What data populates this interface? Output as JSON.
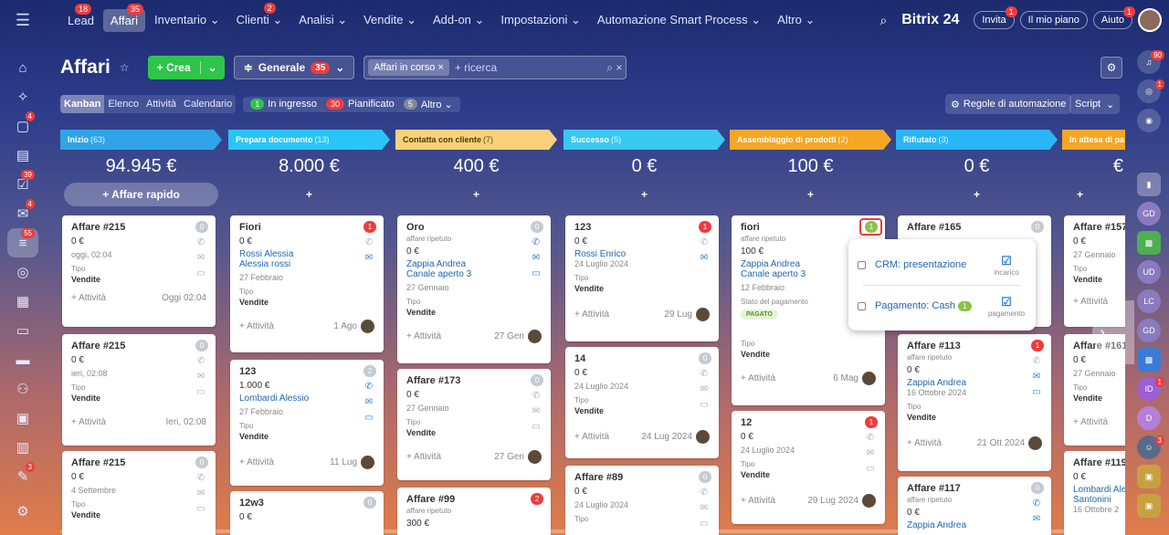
{
  "nav": {
    "items": [
      {
        "label": "Lead",
        "badge": "18"
      },
      {
        "label": "Affari",
        "badge": "35"
      },
      {
        "label": "Inventario ⌄",
        "badge": ""
      },
      {
        "label": "Clienti ⌄",
        "badge": "2"
      },
      {
        "label": "Analisi ⌄",
        "badge": ""
      },
      {
        "label": "Vendite ⌄",
        "badge": ""
      },
      {
        "label": "Add-on ⌄",
        "badge": ""
      },
      {
        "label": "Impostazioni ⌄",
        "badge": ""
      },
      {
        "label": "Automazione Smart Process ⌄",
        "badge": ""
      },
      {
        "label": "Altro ⌄",
        "badge": ""
      }
    ],
    "logo": "Bitrix 24",
    "invite": "Invita",
    "invite_badge": "1",
    "plan": "Il mio piano",
    "help": "Aiuto",
    "help_badge": "1"
  },
  "page": {
    "title": "Affari",
    "create": "+ Crea",
    "filter": "Generale",
    "filter_count": "35",
    "search_tag": "Affari in corso ×",
    "search_placeholder": "+ ricerca"
  },
  "views": {
    "tabs": [
      "Kanban",
      "Elenco",
      "Attività",
      "Calendario"
    ],
    "counters": [
      {
        "n": "1",
        "label": "In ingresso",
        "color": "#2fc44a"
      },
      {
        "n": "30",
        "label": "Pianificato",
        "color": "#ef3b3b"
      },
      {
        "n": "5",
        "label": "Altro ⌄",
        "color": "#7e8a9a"
      }
    ],
    "automation": "Regole di automazione",
    "script": "Script"
  },
  "left_badges": {
    "feed": "4",
    "tasks": "39",
    "mail": "4",
    "crm": "55",
    "sites": "3"
  },
  "right_badges": {
    "bell": "90",
    "second": "1",
    "id": "1",
    "av": "3"
  },
  "columns": [
    {
      "name": "Inizio",
      "count": "(63)",
      "total": "94.945 €",
      "add": "+ Affare rapido",
      "color": "#2fa4e7"
    },
    {
      "name": "Prepara documento",
      "count": "(13)",
      "total": "8.000 €",
      "add": "+",
      "color": "#29c5f6"
    },
    {
      "name": "Contatta con cliente",
      "count": "(7)",
      "total": "400 €",
      "add": "+",
      "color": "#f9d17a"
    },
    {
      "name": "Successo",
      "count": "(5)",
      "total": "0 €",
      "add": "+",
      "color": "#39c8f0"
    },
    {
      "name": "Assemblaggio di prodotti",
      "count": "(2)",
      "total": "100 €",
      "add": "+",
      "color": "#f5a623"
    },
    {
      "name": "Rifiutato",
      "count": "(3)",
      "total": "0 €",
      "add": "+",
      "color": "#29b6f6"
    },
    {
      "name": "In attesa di pa",
      "count": "",
      "total": "€",
      "add": "+",
      "color": "#f5a623"
    }
  ],
  "cards": {
    "c1a": {
      "title": "Affare #215",
      "amt": "0 €",
      "date": "oggi, 02:04",
      "lbl": "Tipo",
      "val": "Vendite",
      "act": "+ Attività",
      "when": "Oggi 02:04",
      "badge": "0"
    },
    "c1b": {
      "title": "Affare #215",
      "amt": "0 €",
      "date": "ieri, 02:08",
      "lbl": "Tipo",
      "val": "Vendite",
      "act": "+ Attività",
      "when": "Ieri, 02:08",
      "badge": "0"
    },
    "c1c": {
      "title": "Affare #215",
      "amt": "0 €",
      "date": "4 Settembre",
      "lbl": "Tipo",
      "val": "Vendite",
      "badge": "0"
    },
    "c2a": {
      "title": "Fiori",
      "amt": "0 €",
      "link1": "Rossi Alessia",
      "link2": "Alessia rossi",
      "date": "27 Febbraio",
      "lbl": "Tipo",
      "val": "Vendite",
      "act": "+ Attività",
      "when": "1 Ago",
      "badge": "1"
    },
    "c2b": {
      "title": "123",
      "amt": "1.000 €",
      "link1": "Lombardi Alessio",
      "date": "27 Febbraio",
      "lbl": "Tipo",
      "val": "Vendite",
      "act": "+ Attività",
      "when": "11 Lug",
      "badge": "2"
    },
    "c2c": {
      "title": "12w3",
      "amt": "0 €",
      "badge": "0"
    },
    "c3a": {
      "title": "Oro",
      "sub": "affare ripetuto",
      "amt": "0 €",
      "link1": "Zappia Andrea",
      "link2": "Canale aperto 3",
      "date": "27 Gennaio",
      "lbl": "Tipo",
      "val": "Vendite",
      "act": "+ Attività",
      "when": "27 Gen",
      "badge": "0"
    },
    "c3b": {
      "title": "Affare #173",
      "amt": "0 €",
      "date": "27 Gennaio",
      "lbl": "Tipo",
      "val": "Vendite",
      "act": "+ Attività",
      "when": "27 Gen",
      "badge": "0"
    },
    "c3c": {
      "title": "Affare #99",
      "sub": "affare ripetuto",
      "amt": "300 €",
      "badge": "2"
    },
    "c4a": {
      "title": "123",
      "amt": "0 €",
      "link1": "Rossi Enrico",
      "date": "24 Luglio 2024",
      "lbl": "Tipo",
      "val": "Vendite",
      "act": "+ Attività",
      "when": "29 Lug",
      "badge": "1"
    },
    "c4b": {
      "title": "14",
      "amt": "0 €",
      "date": "24 Luglio 2024",
      "lbl": "Tipo",
      "val": "Vendite",
      "act": "+ Attività",
      "when": "24 Lug 2024",
      "badge": "0"
    },
    "c4c": {
      "title": "Affare #89",
      "amt": "0 €",
      "date": "24 Luglio 2024",
      "lbl": "Tipo",
      "badge": "0"
    },
    "c5a": {
      "title": "fiori",
      "sub": "affare ripetuto",
      "amt": "100 €",
      "link1": "Zappia Andrea",
      "link2": "Canale aperto 3",
      "date": "12 Febbraio",
      "lbl": "Stato del pagamento",
      "val": "PAGATO",
      "lbl2": "Tipo",
      "val2": "Vendite",
      "act": "+ Attività",
      "when": "6 Mag",
      "badge": "1"
    },
    "c5b": {
      "title": "12",
      "amt": "0 €",
      "date": "24 Luglio 2024",
      "lbl": "Tipo",
      "val": "Vendite",
      "act": "+ Attività",
      "when": "29 Lug 2024",
      "badge": "1"
    },
    "c6a": {
      "title": "Affare #165",
      "badge": "0"
    },
    "c6b": {
      "title": "Affare #113",
      "sub": "affare ripetuto",
      "amt": "0 €",
      "link1": "Zappia Andrea",
      "date": "16 Ottobre 2024",
      "lbl": "Tipo",
      "val": "Vendite",
      "act": "+ Attività",
      "when": "21 Ott 2024",
      "badge": "1"
    },
    "c6c": {
      "title": "Affare #117",
      "sub": "affare ripetuto",
      "amt": "0 €",
      "link1": "Zappia Andrea",
      "badge": "0"
    },
    "c7a": {
      "title": "Affare #157",
      "amt": "0 €",
      "date": "27 Gennaio",
      "lbl": "Tipo",
      "val": "Vendite",
      "act": "+ Attività"
    },
    "c7b": {
      "title": "Affare #161",
      "amt": "0 €",
      "date": "27 Gennaio",
      "lbl": "Tipo",
      "val": "Vendite",
      "act": "+ Attività"
    },
    "c7c": {
      "title": "Affare #119",
      "amt": "0 €",
      "link1": "Lombardi Ale",
      "link2": "Santonini",
      "date": "16 Ottobre 2"
    }
  },
  "popup": {
    "row1": "CRM: presentazione",
    "row1_tag": "incarico",
    "row2": "Pagamento: Cash",
    "row2_badge": "1",
    "row2_tag": "pagamento"
  }
}
